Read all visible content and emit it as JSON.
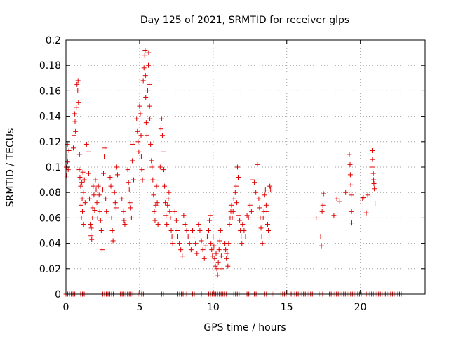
{
  "chart_data": {
    "type": "scatter",
    "title": "Day 125 of 2021, SRMTID for receiver glps",
    "xlabel": "GPS time / hours",
    "ylabel": "SRMTID / TECUs",
    "xlim": [
      0,
      24.4
    ],
    "ylim": [
      0,
      0.2
    ],
    "xticks": [
      0,
      5,
      10,
      15,
      20
    ],
    "xtick_labels": [
      "0",
      "5",
      "10",
      "15",
      "20"
    ],
    "yticks": [
      0,
      0.02,
      0.04,
      0.06,
      0.08,
      0.1,
      0.12,
      0.14,
      0.16,
      0.18,
      0.2
    ],
    "ytick_labels": [
      "0",
      "0.02",
      "0.04",
      "0.06",
      "0.08",
      "0.1",
      "0.12",
      "0.14",
      "0.16",
      "0.18",
      "0.2"
    ],
    "grid": true,
    "marker": "plus",
    "marker_color": "#e00000",
    "series": [
      {
        "name": "glps",
        "points": [
          [
            0.0,
            0.145
          ],
          [
            0.02,
            0.1
          ],
          [
            0.05,
            0.093
          ],
          [
            0.08,
            0.108
          ],
          [
            0.1,
            0.118
          ],
          [
            0.12,
            0.104
          ],
          [
            0.15,
            0.098
          ],
          [
            0.2,
            0.113
          ],
          [
            0.5,
            0.115
          ],
          [
            0.55,
            0.125
          ],
          [
            0.6,
            0.142
          ],
          [
            0.62,
            0.136
          ],
          [
            0.65,
            0.128
          ],
          [
            0.7,
            0.147
          ],
          [
            0.75,
            0.165
          ],
          [
            0.8,
            0.16
          ],
          [
            0.82,
            0.168
          ],
          [
            0.85,
            0.151
          ],
          [
            0.9,
            0.098
          ],
          [
            0.92,
            0.11
          ],
          [
            0.95,
            0.092
          ],
          [
            1.0,
            0.085
          ],
          [
            1.02,
            0.07
          ],
          [
            1.05,
            0.06
          ],
          [
            1.08,
            0.088
          ],
          [
            1.1,
            0.075
          ],
          [
            1.12,
            0.065
          ],
          [
            1.15,
            0.096
          ],
          [
            1.18,
            0.08
          ],
          [
            1.2,
            0.055
          ],
          [
            1.25,
            0.09
          ],
          [
            1.3,
            0.072
          ],
          [
            1.4,
            0.118
          ],
          [
            1.5,
            0.112
          ],
          [
            1.55,
            0.095
          ],
          [
            1.6,
            0.075
          ],
          [
            1.65,
            0.055
          ],
          [
            1.7,
            0.046
          ],
          [
            1.72,
            0.052
          ],
          [
            1.75,
            0.043
          ],
          [
            1.8,
            0.06
          ],
          [
            1.82,
            0.068
          ],
          [
            1.85,
            0.085
          ],
          [
            1.9,
            0.078
          ],
          [
            1.95,
            0.066
          ],
          [
            2.0,
            0.09
          ],
          [
            2.05,
            0.082
          ],
          [
            2.1,
            0.072
          ],
          [
            2.15,
            0.06
          ],
          [
            2.2,
            0.085
          ],
          [
            2.25,
            0.078
          ],
          [
            2.3,
            0.065
          ],
          [
            2.35,
            0.058
          ],
          [
            2.4,
            0.05
          ],
          [
            2.45,
            0.035
          ],
          [
            2.5,
            0.082
          ],
          [
            2.55,
            0.095
          ],
          [
            2.6,
            0.108
          ],
          [
            2.65,
            0.115
          ],
          [
            2.7,
            0.075
          ],
          [
            2.75,
            0.065
          ],
          [
            3.0,
            0.092
          ],
          [
            3.05,
            0.085
          ],
          [
            3.1,
            0.06
          ],
          [
            3.15,
            0.05
          ],
          [
            3.2,
            0.042
          ],
          [
            3.3,
            0.08
          ],
          [
            3.35,
            0.072
          ],
          [
            3.4,
            0.068
          ],
          [
            3.45,
            0.1
          ],
          [
            3.5,
            0.094
          ],
          [
            3.8,
            0.075
          ],
          [
            3.9,
            0.065
          ],
          [
            3.95,
            0.058
          ],
          [
            4.0,
            0.055
          ],
          [
            4.2,
            0.098
          ],
          [
            4.25,
            0.088
          ],
          [
            4.3,
            0.082
          ],
          [
            4.35,
            0.072
          ],
          [
            4.4,
            0.068
          ],
          [
            4.45,
            0.06
          ],
          [
            4.5,
            0.105
          ],
          [
            4.55,
            0.118
          ],
          [
            4.6,
            0.09
          ],
          [
            4.8,
            0.138
          ],
          [
            4.85,
            0.128
          ],
          [
            4.9,
            0.12
          ],
          [
            4.95,
            0.112
          ],
          [
            5.0,
            0.148
          ],
          [
            5.05,
            0.142
          ],
          [
            5.1,
            0.125
          ],
          [
            5.12,
            0.108
          ],
          [
            5.15,
            0.098
          ],
          [
            5.2,
            0.09
          ],
          [
            5.25,
            0.168
          ],
          [
            5.3,
            0.178
          ],
          [
            5.35,
            0.188
          ],
          [
            5.38,
            0.192
          ],
          [
            5.4,
            0.172
          ],
          [
            5.42,
            0.155
          ],
          [
            5.45,
            0.135
          ],
          [
            5.5,
            0.125
          ],
          [
            5.55,
            0.16
          ],
          [
            5.6,
            0.18
          ],
          [
            5.62,
            0.19
          ],
          [
            5.65,
            0.165
          ],
          [
            5.68,
            0.148
          ],
          [
            5.7,
            0.138
          ],
          [
            5.75,
            0.118
          ],
          [
            5.8,
            0.105
          ],
          [
            5.85,
            0.1
          ],
          [
            5.9,
            0.09
          ],
          [
            5.95,
            0.078
          ],
          [
            6.0,
            0.065
          ],
          [
            6.05,
            0.058
          ],
          [
            6.1,
            0.07
          ],
          [
            6.15,
            0.085
          ],
          [
            6.2,
            0.072
          ],
          [
            6.25,
            0.055
          ],
          [
            6.4,
            0.1
          ],
          [
            6.45,
            0.13
          ],
          [
            6.5,
            0.138
          ],
          [
            6.55,
            0.125
          ],
          [
            6.6,
            0.112
          ],
          [
            6.65,
            0.098
          ],
          [
            6.7,
            0.085
          ],
          [
            6.75,
            0.072
          ],
          [
            6.8,
            0.062
          ],
          [
            6.85,
            0.055
          ],
          [
            6.9,
            0.07
          ],
          [
            6.95,
            0.075
          ],
          [
            7.0,
            0.08
          ],
          [
            7.05,
            0.065
          ],
          [
            7.1,
            0.06
          ],
          [
            7.15,
            0.05
          ],
          [
            7.2,
            0.045
          ],
          [
            7.25,
            0.04
          ],
          [
            7.4,
            0.065
          ],
          [
            7.5,
            0.058
          ],
          [
            7.55,
            0.05
          ],
          [
            7.6,
            0.045
          ],
          [
            7.7,
            0.04
          ],
          [
            7.8,
            0.035
          ],
          [
            7.9,
            0.03
          ],
          [
            8.0,
            0.062
          ],
          [
            8.1,
            0.055
          ],
          [
            8.2,
            0.05
          ],
          [
            8.3,
            0.045
          ],
          [
            8.4,
            0.04
          ],
          [
            8.5,
            0.035
          ],
          [
            8.6,
            0.05
          ],
          [
            8.7,
            0.045
          ],
          [
            8.8,
            0.04
          ],
          [
            8.9,
            0.032
          ],
          [
            9.0,
            0.055
          ],
          [
            9.1,
            0.05
          ],
          [
            9.2,
            0.042
          ],
          [
            9.3,
            0.035
          ],
          [
            9.4,
            0.028
          ],
          [
            9.5,
            0.038
          ],
          [
            9.6,
            0.045
          ],
          [
            9.7,
            0.05
          ],
          [
            9.75,
            0.058
          ],
          [
            9.8,
            0.062
          ],
          [
            9.85,
            0.04
          ],
          [
            9.9,
            0.035
          ],
          [
            9.95,
            0.03
          ],
          [
            10.0,
            0.045
          ],
          [
            10.05,
            0.038
          ],
          [
            10.1,
            0.028
          ],
          [
            10.15,
            0.022
          ],
          [
            10.2,
            0.032
          ],
          [
            10.25,
            0.02
          ],
          [
            10.3,
            0.015
          ],
          [
            10.35,
            0.025
          ],
          [
            10.4,
            0.035
          ],
          [
            10.45,
            0.042
          ],
          [
            10.5,
            0.05
          ],
          [
            10.55,
            0.03
          ],
          [
            10.6,
            0.02
          ],
          [
            10.8,
            0.04
          ],
          [
            10.85,
            0.035
          ],
          [
            10.9,
            0.028
          ],
          [
            10.95,
            0.032
          ],
          [
            11.0,
            0.022
          ],
          [
            11.05,
            0.04
          ],
          [
            11.1,
            0.055
          ],
          [
            11.15,
            0.06
          ],
          [
            11.2,
            0.065
          ],
          [
            11.25,
            0.07
          ],
          [
            11.3,
            0.06
          ],
          [
            11.35,
            0.065
          ],
          [
            11.4,
            0.075
          ],
          [
            11.5,
            0.08
          ],
          [
            11.55,
            0.085
          ],
          [
            11.6,
            0.072
          ],
          [
            11.65,
            0.1
          ],
          [
            11.7,
            0.092
          ],
          [
            11.75,
            0.062
          ],
          [
            11.8,
            0.058
          ],
          [
            11.85,
            0.05
          ],
          [
            11.9,
            0.045
          ],
          [
            11.95,
            0.04
          ],
          [
            12.0,
            0.055
          ],
          [
            12.1,
            0.05
          ],
          [
            12.2,
            0.045
          ],
          [
            12.3,
            0.062
          ],
          [
            12.4,
            0.06
          ],
          [
            12.5,
            0.07
          ],
          [
            12.6,
            0.065
          ],
          [
            12.7,
            0.09
          ],
          [
            12.8,
            0.088
          ],
          [
            12.9,
            0.08
          ],
          [
            13.0,
            0.102
          ],
          [
            13.1,
            0.075
          ],
          [
            13.15,
            0.068
          ],
          [
            13.2,
            0.06
          ],
          [
            13.25,
            0.052
          ],
          [
            13.3,
            0.045
          ],
          [
            13.35,
            0.04
          ],
          [
            13.4,
            0.06
          ],
          [
            13.45,
            0.065
          ],
          [
            13.5,
            0.078
          ],
          [
            13.55,
            0.082
          ],
          [
            13.6,
            0.07
          ],
          [
            13.65,
            0.065
          ],
          [
            13.7,
            0.055
          ],
          [
            13.75,
            0.05
          ],
          [
            13.8,
            0.045
          ],
          [
            13.85,
            0.085
          ],
          [
            13.9,
            0.082
          ],
          [
            17.0,
            0.06
          ],
          [
            17.3,
            0.045
          ],
          [
            17.35,
            0.038
          ],
          [
            17.4,
            0.065
          ],
          [
            17.45,
            0.07
          ],
          [
            17.5,
            0.079
          ],
          [
            18.2,
            0.062
          ],
          [
            18.4,
            0.075
          ],
          [
            18.6,
            0.073
          ],
          [
            19.0,
            0.08
          ],
          [
            19.25,
            0.11
          ],
          [
            19.3,
            0.102
          ],
          [
            19.32,
            0.094
          ],
          [
            19.35,
            0.086
          ],
          [
            19.38,
            0.078
          ],
          [
            19.4,
            0.065
          ],
          [
            19.42,
            0.056
          ],
          [
            20.15,
            0.075
          ],
          [
            20.2,
            0.076
          ],
          [
            20.4,
            0.064
          ],
          [
            20.5,
            0.078
          ],
          [
            20.8,
            0.113
          ],
          [
            20.82,
            0.106
          ],
          [
            20.85,
            0.1
          ],
          [
            20.88,
            0.095
          ],
          [
            20.9,
            0.09
          ],
          [
            20.92,
            0.087
          ],
          [
            20.95,
            0.083
          ],
          [
            21.0,
            0.071
          ]
        ]
      }
    ],
    "zero_segments": [
      [
        0.0,
        0.7
      ],
      [
        1.0,
        1.3
      ],
      [
        1.5,
        1.55
      ],
      [
        2.5,
        3.3
      ],
      [
        3.7,
        4.6
      ],
      [
        4.9,
        5.3
      ],
      [
        6.5,
        6.7
      ],
      [
        7.6,
        8.2
      ],
      [
        8.6,
        8.9
      ],
      [
        9.2,
        9.3
      ],
      [
        9.7,
        10.9
      ],
      [
        11.4,
        11.8
      ],
      [
        12.3,
        12.5
      ],
      [
        12.8,
        13.0
      ],
      [
        13.5,
        13.7
      ],
      [
        14.0,
        14.2
      ],
      [
        14.6,
        15.0
      ],
      [
        15.3,
        16.8
      ],
      [
        17.2,
        17.5
      ],
      [
        17.9,
        20.2
      ],
      [
        20.4,
        21.5
      ],
      [
        21.7,
        22.9
      ]
    ]
  }
}
